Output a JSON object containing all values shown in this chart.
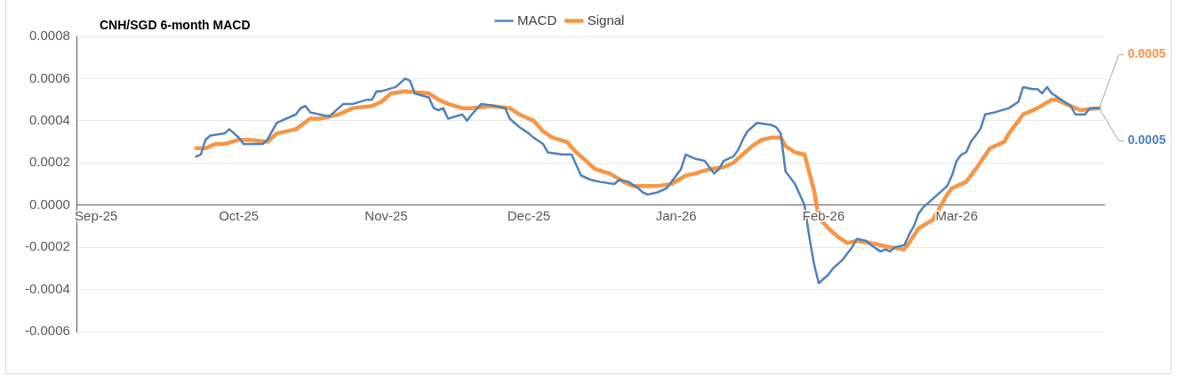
{
  "chart_data": {
    "type": "line",
    "title": "CNH/SGD 6-month MACD",
    "legend": "top",
    "grid": "y",
    "marker": "none",
    "line_style": "solid",
    "xlim": [
      "2025-08-28",
      "2026-04-01"
    ],
    "xticks": [
      {
        "value": "2025-09-01",
        "label": "Sep-25"
      },
      {
        "value": "2025-10-01",
        "label": "Oct-25"
      },
      {
        "value": "2025-11-01",
        "label": "Nov-25"
      },
      {
        "value": "2025-12-01",
        "label": "Dec-25"
      },
      {
        "value": "2026-01-01",
        "label": "Jan-26"
      },
      {
        "value": "2026-02-01",
        "label": "Feb-26"
      },
      {
        "value": "2026-03-01",
        "label": "Mar-26"
      }
    ],
    "ylim": [
      -0.0006,
      0.0008
    ],
    "yticks": [
      {
        "value": -0.0006,
        "label": "-0.0006"
      },
      {
        "value": -0.0004,
        "label": "-0.0004"
      },
      {
        "value": -0.0002,
        "label": "-0.0002"
      },
      {
        "value": 0,
        "label": "0.0000"
      },
      {
        "value": 0.0002,
        "label": "0.0002"
      },
      {
        "value": 0.0004,
        "label": "0.0004"
      },
      {
        "value": 0.0006,
        "label": "0.0006"
      },
      {
        "value": 0.0008,
        "label": "0.0008"
      }
    ],
    "series": [
      {
        "name": "MACD",
        "color": "#4f81bd",
        "x": [
          "2025-09-22",
          "2025-09-23",
          "2025-09-24",
          "2025-09-25",
          "2025-09-28",
          "2025-09-29",
          "2025-10-01",
          "2025-10-02",
          "2025-10-06",
          "2025-10-07",
          "2025-10-09",
          "2025-10-13",
          "2025-10-14",
          "2025-10-15",
          "2025-10-16",
          "2025-10-18",
          "2025-10-20",
          "2025-10-22",
          "2025-10-23",
          "2025-10-25",
          "2025-10-28",
          "2025-10-29",
          "2025-10-30",
          "2025-10-31",
          "2025-11-03",
          "2025-11-05",
          "2025-11-06",
          "2025-11-07",
          "2025-11-10",
          "2025-11-11",
          "2025-11-12",
          "2025-11-13",
          "2025-11-14",
          "2025-11-17",
          "2025-11-18",
          "2025-11-19",
          "2025-11-21",
          "2025-11-24",
          "2025-11-26",
          "2025-11-27",
          "2025-11-29",
          "2025-12-01",
          "2025-12-02",
          "2025-12-04",
          "2025-12-05",
          "2025-12-08",
          "2025-12-10",
          "2025-12-11",
          "2025-12-12",
          "2025-12-14",
          "2025-12-16",
          "2025-12-19",
          "2025-12-20",
          "2025-12-22",
          "2025-12-24",
          "2025-12-25",
          "2025-12-26",
          "2025-12-28",
          "2025-12-30",
          "2026-01-01",
          "2026-01-02",
          "2026-01-03",
          "2026-01-05",
          "2026-01-07",
          "2026-01-09",
          "2026-01-10",
          "2026-01-11",
          "2026-01-13",
          "2026-01-14",
          "2026-01-15",
          "2026-01-16",
          "2026-01-18",
          "2026-01-21",
          "2026-01-22",
          "2026-01-23",
          "2026-01-24",
          "2026-01-26",
          "2026-01-28",
          "2026-01-29",
          "2026-01-30",
          "2026-01-31",
          "2026-02-01",
          "2026-02-02",
          "2026-02-03",
          "2026-02-05",
          "2026-02-07",
          "2026-02-08",
          "2026-02-10",
          "2026-02-11",
          "2026-02-13",
          "2026-02-14",
          "2026-02-15",
          "2026-02-16",
          "2026-02-18",
          "2026-02-19",
          "2026-02-20",
          "2026-02-21",
          "2026-02-22",
          "2026-02-24",
          "2026-02-27",
          "2026-02-28",
          "2026-03-01",
          "2026-03-02",
          "2026-03-03",
          "2026-03-04",
          "2026-03-06",
          "2026-03-07",
          "2026-03-09",
          "2026-03-12",
          "2026-03-14",
          "2026-03-15",
          "2026-03-17",
          "2026-03-18",
          "2026-03-19",
          "2026-03-20",
          "2026-03-21",
          "2026-03-23",
          "2026-03-25",
          "2026-03-26",
          "2026-03-28",
          "2026-03-29",
          "2026-03-30",
          "2026-03-31"
        ],
        "values": [
          0.00023,
          0.00024,
          0.00031,
          0.00033,
          0.00034,
          0.00036,
          0.00032,
          0.00029,
          0.00029,
          0.00031,
          0.00039,
          0.00043,
          0.00046,
          0.00047,
          0.00044,
          0.00043,
          0.00042,
          0.00046,
          0.00048,
          0.00048,
          0.0005,
          0.0005,
          0.00054,
          0.00054,
          0.00056,
          0.0006,
          0.00059,
          0.00053,
          0.00051,
          0.00046,
          0.00045,
          0.00046,
          0.00041,
          0.00043,
          0.0004,
          0.00043,
          0.00048,
          0.00047,
          0.00046,
          0.00041,
          0.00037,
          0.00034,
          0.00032,
          0.00029,
          0.00025,
          0.00024,
          0.00024,
          0.00019,
          0.00014,
          0.00012,
          0.00011,
          0.0001,
          0.00012,
          0.00011,
          8e-05,
          6e-05,
          5e-05,
          6e-05,
          8e-05,
          0.00014,
          0.00017,
          0.00024,
          0.00022,
          0.00021,
          0.00015,
          0.00017,
          0.00021,
          0.00023,
          0.00026,
          0.00031,
          0.00035,
          0.00039,
          0.00038,
          0.00037,
          0.00034,
          0.00016,
          0.0001,
          0,
          -0.00015,
          -0.00028,
          -0.00037,
          -0.00035,
          -0.00033,
          -0.0003,
          -0.00026,
          -0.0002,
          -0.00016,
          -0.00017,
          -0.00019,
          -0.00022,
          -0.00021,
          -0.00022,
          -0.0002,
          -0.00019,
          -0.00014,
          -0.0001,
          -4e-05,
          -1e-05,
          3e-05,
          9e-05,
          0.00014,
          0.00021,
          0.00024,
          0.00025,
          0.0003,
          0.00036,
          0.00043,
          0.00044,
          0.00046,
          0.00049,
          0.00056,
          0.00055,
          0.00055,
          0.00053,
          0.00056,
          0.00053,
          0.0005,
          0.00047,
          0.00043,
          0.00043,
          0.00046,
          0.00046,
          0.00046
        ]
      },
      {
        "name": "Signal",
        "color": "#f79646",
        "x": [
          "2025-09-22",
          "2025-09-24",
          "2025-09-26",
          "2025-09-28",
          "2025-10-01",
          "2025-10-03",
          "2025-10-07",
          "2025-10-09",
          "2025-10-13",
          "2025-10-16",
          "2025-10-18",
          "2025-10-22",
          "2025-10-25",
          "2025-10-29",
          "2025-10-31",
          "2025-11-02",
          "2025-11-05",
          "2025-11-10",
          "2025-11-12",
          "2025-11-14",
          "2025-11-17",
          "2025-11-19",
          "2025-11-23",
          "2025-11-27",
          "2025-11-29",
          "2025-12-02",
          "2025-12-04",
          "2025-12-06",
          "2025-12-09",
          "2025-12-11",
          "2025-12-13",
          "2025-12-15",
          "2025-12-18",
          "2025-12-21",
          "2025-12-23",
          "2025-12-26",
          "2025-12-28",
          "2025-12-31",
          "2026-01-03",
          "2026-01-05",
          "2026-01-08",
          "2026-01-11",
          "2026-01-13",
          "2026-01-15",
          "2026-01-17",
          "2026-01-19",
          "2026-01-21",
          "2026-01-23",
          "2026-01-24",
          "2026-01-26",
          "2026-01-28",
          "2026-01-30",
          "2026-01-31",
          "2026-02-02",
          "2026-02-04",
          "2026-02-06",
          "2026-02-08",
          "2026-02-11",
          "2026-02-15",
          "2026-02-18",
          "2026-02-19",
          "2026-02-21",
          "2026-02-24",
          "2026-02-27",
          "2026-02-28",
          "2026-03-03",
          "2026-03-05",
          "2026-03-08",
          "2026-03-11",
          "2026-03-12",
          "2026-03-15",
          "2026-03-18",
          "2026-03-21",
          "2026-03-22",
          "2026-03-25",
          "2026-03-27",
          "2026-03-31"
        ],
        "values": [
          0.00027,
          0.00027,
          0.00029,
          0.00029,
          0.00031,
          0.00031,
          0.0003,
          0.00034,
          0.00036,
          0.00041,
          0.00041,
          0.00043,
          0.00046,
          0.00047,
          0.00049,
          0.00053,
          0.00054,
          0.00053,
          0.0005,
          0.00048,
          0.00046,
          0.00046,
          0.00047,
          0.00046,
          0.00043,
          0.0004,
          0.00035,
          0.00032,
          0.0003,
          0.00025,
          0.00021,
          0.00017,
          0.00015,
          0.00011,
          9e-05,
          9e-05,
          9e-05,
          0.0001,
          0.00014,
          0.00015,
          0.00017,
          0.00018,
          0.0002,
          0.00024,
          0.00028,
          0.00031,
          0.00032,
          0.00032,
          0.00028,
          0.00025,
          0.00024,
          7e-05,
          -6e-05,
          -0.00011,
          -0.00015,
          -0.00018,
          -0.00017,
          -0.00018,
          -0.0002,
          -0.00021,
          -0.00018,
          -0.00011,
          -7e-05,
          5e-05,
          8e-05,
          0.00011,
          0.00017,
          0.00027,
          0.0003,
          0.00034,
          0.00043,
          0.00046,
          0.0005,
          0.0005,
          0.00047,
          0.00045,
          0.00046
        ]
      }
    ],
    "annotations": [
      {
        "text": "0.0005",
        "x": "2026-03-31",
        "y": 0.00046
      },
      {
        "text": "0.0005",
        "x": "2026-03-31",
        "y": 0.00046
      }
    ]
  }
}
